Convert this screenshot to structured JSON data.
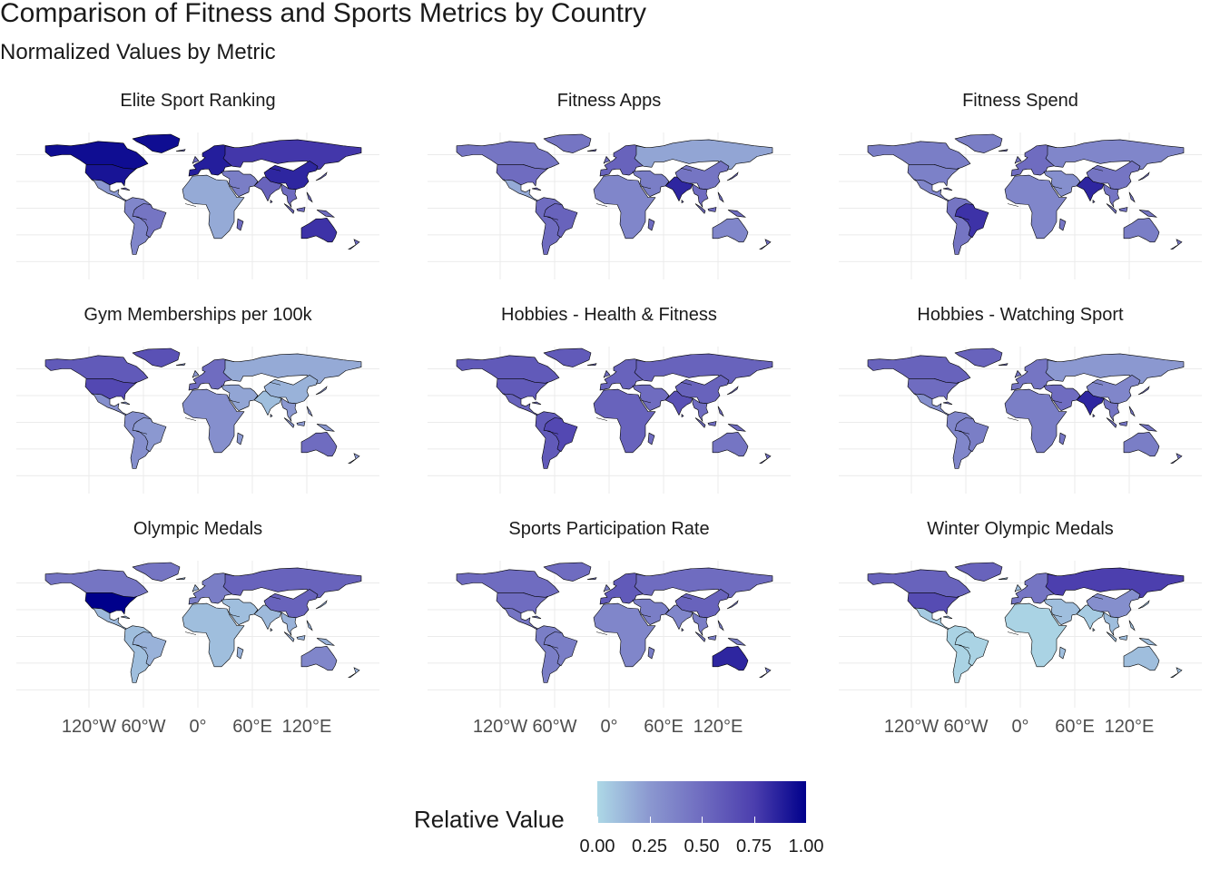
{
  "title": "Comparison of Fitness and Sports Metrics by Country",
  "subtitle": "Normalized Values by Metric",
  "legend": {
    "title": "Relative Value",
    "ticks": [
      "0.00",
      "0.25",
      "0.50",
      "0.75",
      "1.00"
    ],
    "colors": {
      "low": "#add8e6",
      "high": "#00008b"
    }
  },
  "lon_labels": [
    "120°W",
    "60°W",
    "0°",
    "60°E",
    "120°E"
  ],
  "panels": [
    {
      "title": "Elite Sport Ranking",
      "values": {
        "northamerica": 0.95,
        "usa": 0.92,
        "mexico": 0.25,
        "southamerica": 0.35,
        "brazil": 0.45,
        "europe": 0.88,
        "russia": 0.78,
        "africa": 0.18,
        "middleeast": 0.4,
        "india": 0.55,
        "china": 0.85,
        "seasia": 0.5,
        "australia": 0.8,
        "greenland": 0.95
      }
    },
    {
      "title": "Fitness Apps",
      "values": {
        "northamerica": 0.45,
        "usa": 0.5,
        "mexico": 0.18,
        "southamerica": 0.5,
        "brazil": 0.55,
        "europe": 0.55,
        "russia": 0.2,
        "africa": 0.35,
        "middleeast": 0.4,
        "india": 0.85,
        "china": 0.45,
        "seasia": 0.5,
        "australia": 0.35,
        "greenland": 0.45
      }
    },
    {
      "title": "Fitness Spend",
      "values": {
        "northamerica": 0.4,
        "usa": 0.38,
        "mexico": 0.35,
        "southamerica": 0.45,
        "brazil": 0.8,
        "europe": 0.5,
        "russia": 0.35,
        "africa": 0.35,
        "middleeast": 0.3,
        "india": 0.85,
        "china": 0.45,
        "seasia": 0.45,
        "australia": 0.4,
        "greenland": 0.4
      }
    },
    {
      "title": "Gym Memberships per 100k",
      "values": {
        "northamerica": 0.6,
        "usa": 0.7,
        "mexico": 0.3,
        "southamerica": 0.3,
        "brazil": 0.25,
        "europe": 0.5,
        "russia": 0.18,
        "africa": 0.3,
        "middleeast": 0.2,
        "india": 0.1,
        "china": 0.15,
        "seasia": 0.25,
        "australia": 0.5,
        "greenland": 0.65
      }
    },
    {
      "title": "Hobbies - Health & Fitness",
      "values": {
        "northamerica": 0.6,
        "usa": 0.6,
        "mexico": 0.55,
        "southamerica": 0.6,
        "brazil": 0.7,
        "europe": 0.55,
        "russia": 0.55,
        "africa": 0.55,
        "middleeast": 0.5,
        "india": 0.65,
        "china": 0.55,
        "seasia": 0.5,
        "australia": 0.45,
        "greenland": 0.6
      }
    },
    {
      "title": "Hobbies - Watching Sport",
      "values": {
        "northamerica": 0.55,
        "usa": 0.5,
        "mexico": 0.3,
        "southamerica": 0.35,
        "brazil": 0.4,
        "europe": 0.45,
        "russia": 0.25,
        "africa": 0.4,
        "middleeast": 0.5,
        "india": 0.85,
        "china": 0.35,
        "seasia": 0.45,
        "australia": 0.4,
        "greenland": 0.55
      }
    },
    {
      "title": "Olympic Medals",
      "values": {
        "northamerica": 0.45,
        "usa": 1.0,
        "mexico": 0.12,
        "southamerica": 0.1,
        "brazil": 0.15,
        "europe": 0.4,
        "russia": 0.55,
        "africa": 0.1,
        "middleeast": 0.1,
        "india": 0.12,
        "china": 0.55,
        "seasia": 0.15,
        "australia": 0.35,
        "greenland": 0.45
      }
    },
    {
      "title": "Sports Participation Rate",
      "values": {
        "northamerica": 0.5,
        "usa": 0.5,
        "mexico": 0.45,
        "southamerica": 0.4,
        "brazil": 0.4,
        "europe": 0.6,
        "russia": 0.5,
        "africa": 0.35,
        "middleeast": 0.4,
        "india": 0.35,
        "china": 0.55,
        "seasia": 0.4,
        "australia": 0.85,
        "greenland": 0.5
      }
    },
    {
      "title": "Winter Olympic Medals",
      "values": {
        "northamerica": 0.55,
        "usa": 0.68,
        "mexico": 0.05,
        "southamerica": 0.02,
        "brazil": 0.02,
        "europe": 0.45,
        "russia": 0.75,
        "africa": 0.02,
        "middleeast": 0.1,
        "india": 0.05,
        "china": 0.3,
        "seasia": 0.1,
        "australia": 0.1,
        "greenland": 0.55
      }
    }
  ]
}
